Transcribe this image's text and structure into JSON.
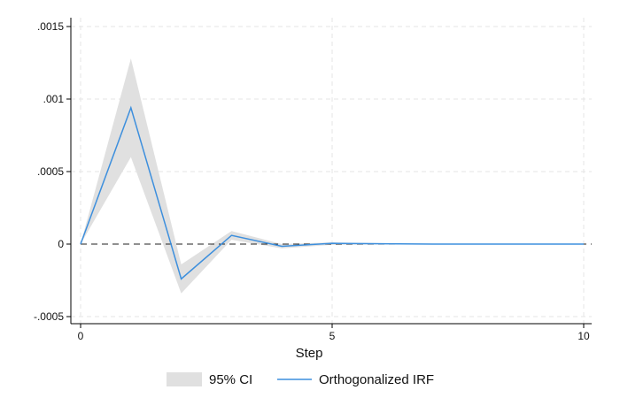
{
  "chart_data": {
    "type": "line",
    "title": "",
    "xlabel": "Step",
    "ylabel": "",
    "x": [
      0,
      1,
      2,
      3,
      4,
      5,
      6,
      7,
      8,
      9,
      10
    ],
    "xlim": [
      0,
      10
    ],
    "ylim": [
      -0.0005,
      0.0015
    ],
    "x_ticks": [
      0,
      5,
      10
    ],
    "x_tick_labels": [
      "0",
      "5",
      "10"
    ],
    "y_ticks": [
      -0.0005,
      0,
      0.0005,
      0.001,
      0.0015
    ],
    "y_tick_labels": [
      "-.0005",
      "0",
      ".0005",
      ".001",
      ".0015"
    ],
    "grid": true,
    "zero_reference_line": true,
    "legend_position": "bottom",
    "series": [
      {
        "name": "Orthogonalized IRF",
        "kind": "line",
        "color": "#3d8fdd",
        "values": [
          0,
          0.00094,
          -0.00024,
          6e-05,
          -1.5e-05,
          5e-06,
          2e-06,
          0,
          0,
          0,
          0
        ]
      },
      {
        "name": "95% CI",
        "kind": "band",
        "color": "#e0e0e0",
        "lower": [
          0,
          0.0006,
          -0.00034,
          3e-05,
          -3e-05,
          -5e-06,
          -2e-06,
          0,
          0,
          0,
          0
        ],
        "upper": [
          0,
          0.00128,
          -0.00014,
          9e-05,
          0.0,
          1.2e-05,
          6e-06,
          1e-06,
          0,
          0,
          0
        ]
      }
    ]
  }
}
